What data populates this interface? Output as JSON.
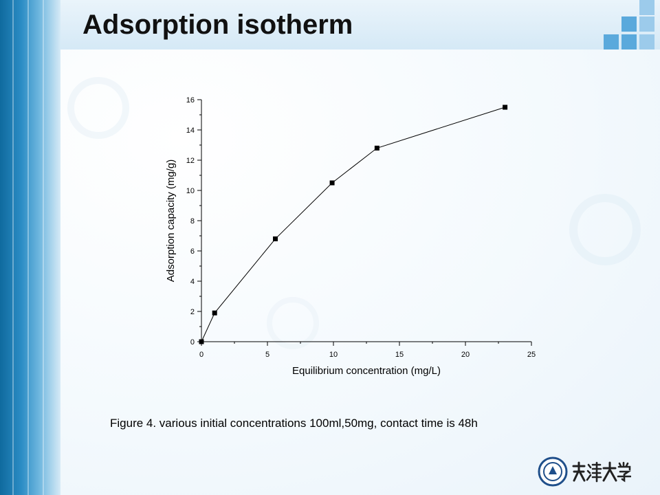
{
  "slide": {
    "title": "Adsorption isotherm",
    "caption": "Figure 4. various initial concentrations 100ml,50mg, contact time is 48h",
    "logo_icon": "university-seal-icon",
    "logo_text": "天津大学"
  },
  "theme": {
    "accent": "#2b8cc4",
    "square_colors": [
      "#1e7fc0",
      "#5aa9dc",
      "#9ccbeb"
    ]
  },
  "chart_data": {
    "type": "line",
    "xlabel": "Equilibrium concentration (mg/L)",
    "ylabel": "Adsorption capacity (mg/g)",
    "xlim": [
      0,
      25
    ],
    "ylim": [
      0,
      16
    ],
    "x_ticks": [
      "0",
      "5",
      "10",
      "15",
      "20",
      "25"
    ],
    "y_ticks": [
      "0",
      "2",
      "4",
      "6",
      "8",
      "10",
      "12",
      "14",
      "16"
    ],
    "marker": "square",
    "grid": false,
    "series": [
      {
        "x": [
          0.0,
          1.0,
          5.6,
          9.9,
          13.3,
          23.0
        ],
        "y": [
          0.0,
          1.9,
          6.8,
          10.5,
          12.8,
          15.5
        ]
      }
    ]
  }
}
